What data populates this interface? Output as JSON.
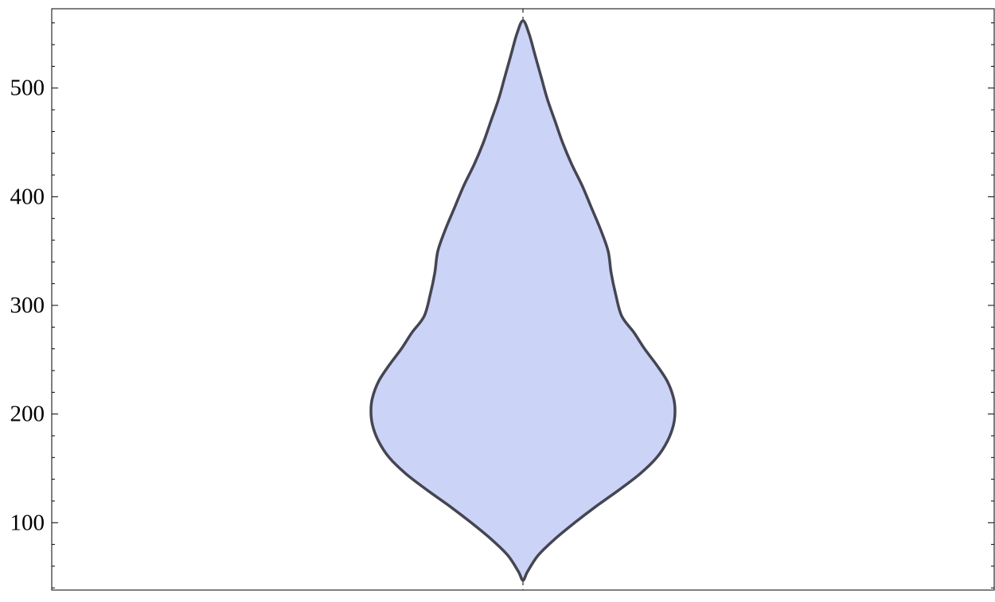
{
  "chart_data": {
    "type": "violin",
    "ylim": [
      38,
      573
    ],
    "y_ticks": [
      100,
      200,
      300,
      400,
      500
    ],
    "y_tick_labels": [
      "100",
      "200",
      "300",
      "400",
      "500"
    ],
    "y_minor_step": 20,
    "grid": false,
    "density_profile": [
      {
        "y": 47,
        "density": 0.0
      },
      {
        "y": 55,
        "density": 0.03
      },
      {
        "y": 70,
        "density": 0.1
      },
      {
        "y": 85,
        "density": 0.21
      },
      {
        "y": 100,
        "density": 0.34
      },
      {
        "y": 115,
        "density": 0.48
      },
      {
        "y": 130,
        "density": 0.63
      },
      {
        "y": 145,
        "density": 0.77
      },
      {
        "y": 160,
        "density": 0.88
      },
      {
        "y": 175,
        "density": 0.95
      },
      {
        "y": 190,
        "density": 0.99
      },
      {
        "y": 203,
        "density": 1.0
      },
      {
        "y": 215,
        "density": 0.99
      },
      {
        "y": 230,
        "density": 0.95
      },
      {
        "y": 245,
        "density": 0.88
      },
      {
        "y": 260,
        "density": 0.8
      },
      {
        "y": 275,
        "density": 0.73
      },
      {
        "y": 290,
        "density": 0.65
      },
      {
        "y": 310,
        "density": 0.61
      },
      {
        "y": 330,
        "density": 0.58
      },
      {
        "y": 350,
        "density": 0.56
      },
      {
        "y": 370,
        "density": 0.51
      },
      {
        "y": 390,
        "density": 0.45
      },
      {
        "y": 410,
        "density": 0.39
      },
      {
        "y": 430,
        "density": 0.32
      },
      {
        "y": 450,
        "density": 0.26
      },
      {
        "y": 470,
        "density": 0.21
      },
      {
        "y": 490,
        "density": 0.16
      },
      {
        "y": 510,
        "density": 0.12
      },
      {
        "y": 530,
        "density": 0.08
      },
      {
        "y": 550,
        "density": 0.04
      },
      {
        "y": 562,
        "density": 0.0
      }
    ],
    "colors": {
      "fill": "#cbd3f6",
      "stroke": "#454552",
      "frame": "#000000"
    }
  }
}
